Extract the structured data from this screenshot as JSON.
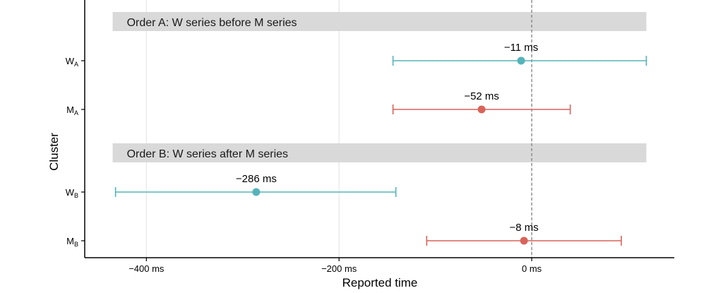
{
  "chart_data": {
    "type": "errorbar",
    "xlabel": "Reported time",
    "ylabel": "Cluster",
    "xlim": [
      -464,
      148
    ],
    "x_ticks": [
      {
        "value": -400,
        "label": "−400 ms"
      },
      {
        "value": -200,
        "label": "−200 ms"
      },
      {
        "value": 0,
        "label": "0 ms"
      }
    ],
    "reference_line": {
      "value": 0,
      "style": "dashed"
    },
    "grid": "vertical major",
    "colors": {
      "W": "#55b3ba",
      "M": "#d9635a",
      "strip": "#d9d9d9"
    },
    "panels": [
      {
        "strip": "Order A: W series before M series",
        "strip_range": [
          -435,
          119
        ],
        "rows": [
          {
            "label_main": "W",
            "label_sub": "A",
            "group": "W",
            "value": -11,
            "low": -144,
            "high": 119,
            "annotation": "−11 ms"
          },
          {
            "label_main": "M",
            "label_sub": "A",
            "group": "M",
            "value": -52,
            "low": -144,
            "high": 40,
            "annotation": "−52 ms"
          }
        ]
      },
      {
        "strip": "Order B: W series after M series",
        "strip_range": [
          -435,
          119
        ],
        "rows": [
          {
            "label_main": "W",
            "label_sub": "B",
            "group": "W",
            "value": -286,
            "low": -432,
            "high": -141,
            "annotation": "−286 ms"
          },
          {
            "label_main": "M",
            "label_sub": "B",
            "group": "M",
            "value": -8,
            "low": -109,
            "high": 93,
            "annotation": "−8 ms"
          }
        ]
      }
    ]
  }
}
